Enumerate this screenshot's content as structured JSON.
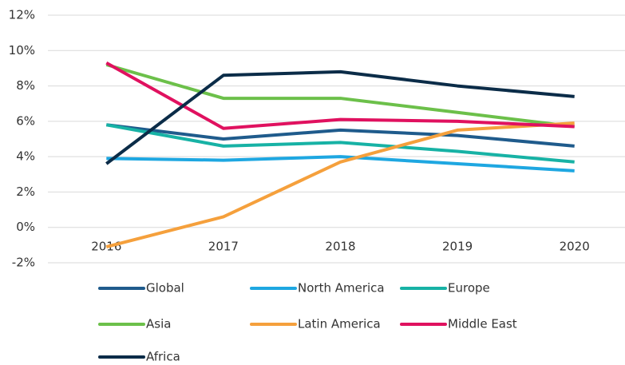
{
  "chart_data": {
    "type": "line",
    "categories": [
      "2016",
      "2017",
      "2018",
      "2019",
      "2020"
    ],
    "series": [
      {
        "name": "Global",
        "color": "#1f5b8c",
        "values": [
          5.8,
          5.0,
          5.5,
          5.2,
          4.6
        ]
      },
      {
        "name": "North America",
        "color": "#1ea7e1",
        "values": [
          3.9,
          3.8,
          4.0,
          3.6,
          3.2
        ]
      },
      {
        "name": "Europe",
        "color": "#17b2a5",
        "values": [
          5.8,
          4.6,
          4.8,
          4.3,
          3.7
        ]
      },
      {
        "name": "Asia",
        "color": "#6cc04a",
        "values": [
          9.2,
          7.3,
          7.3,
          6.5,
          5.7
        ]
      },
      {
        "name": "Latin America",
        "color": "#f5a03c",
        "values": [
          -1.1,
          0.6,
          3.7,
          5.5,
          5.9
        ]
      },
      {
        "name": "Middle East",
        "color": "#e0115f",
        "values": [
          9.3,
          5.6,
          6.1,
          6.0,
          5.7
        ]
      },
      {
        "name": "Africa",
        "color": "#0b2c48",
        "values": [
          3.6,
          8.6,
          8.8,
          8.0,
          7.4
        ]
      }
    ],
    "ylim": [
      -2,
      12
    ],
    "yticks": [
      {
        "value": -2,
        "label": "-2%"
      },
      {
        "value": 0,
        "label": "0%"
      },
      {
        "value": 2,
        "label": "2%"
      },
      {
        "value": 4,
        "label": "4%"
      },
      {
        "value": 6,
        "label": "6%"
      },
      {
        "value": 8,
        "label": "8%"
      },
      {
        "value": 10,
        "label": "10%"
      },
      {
        "value": 12,
        "label": "12%"
      }
    ],
    "grid": true,
    "legend": "bottom"
  }
}
